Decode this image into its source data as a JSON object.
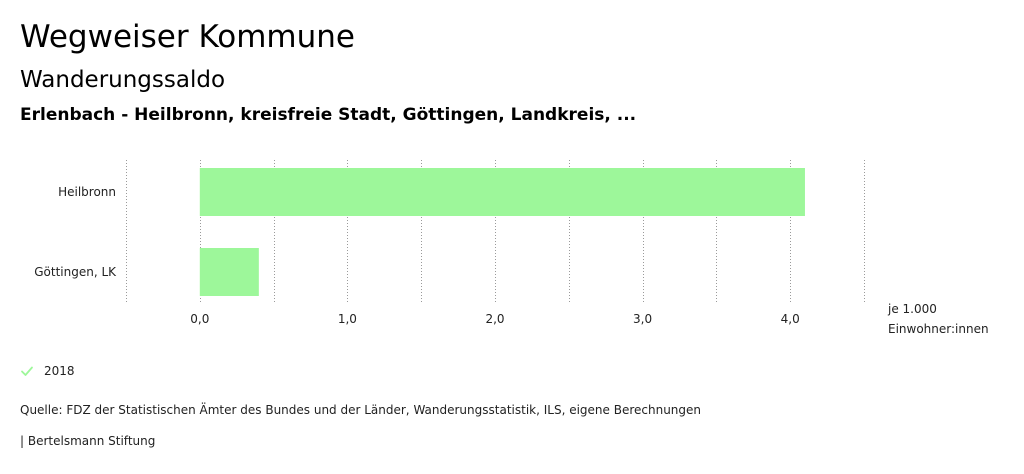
{
  "header": {
    "title": "Wegweiser Kommune",
    "subtitle": "Wanderungssaldo",
    "regions": "Erlenbach - Heilbronn, kreisfreie Stadt, Göttingen, Landkreis, ..."
  },
  "chart_data": {
    "type": "bar",
    "orientation": "horizontal",
    "categories": [
      "Heilbronn",
      "Göttingen, LK"
    ],
    "series": [
      {
        "name": "2018",
        "values": [
          4.1,
          0.4
        ]
      }
    ],
    "xlim": [
      -0.5,
      4.5
    ],
    "xticks": [
      0,
      1,
      2,
      3,
      4
    ],
    "xtick_labels": [
      "0,0",
      "1,0",
      "2,0",
      "3,0",
      "4,0"
    ],
    "unit_label": [
      "je 1.000",
      "Einwohner:innen"
    ],
    "grid": true
  },
  "legend": {
    "label": "2018",
    "color": "#9df79a"
  },
  "colors": {
    "bar": "#9df79a",
    "grid": "#9a9a9a"
  },
  "footer": {
    "source": "Quelle: FDZ der Statistischen Ämter des Bundes und der Länder, Wanderungsstatistik, ILS, eigene Berechnungen",
    "brand": "| Bertelsmann Stiftung"
  }
}
